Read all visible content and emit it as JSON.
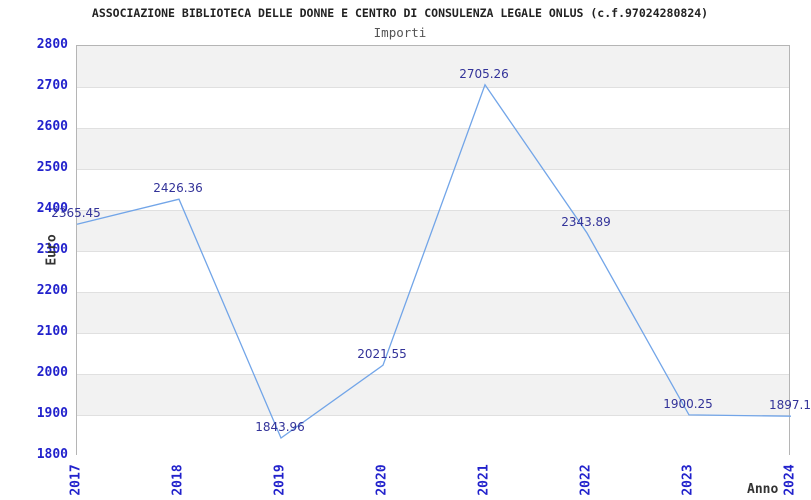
{
  "title": "ASSOCIAZIONE BIBLIOTECA DELLE DONNE E CENTRO DI CONSULENZA LEGALE ONLUS (c.f.97024280824)",
  "subtitle": "Importi",
  "chart_data": {
    "type": "line",
    "title": "Importi",
    "x": [
      2017,
      2018,
      2019,
      2020,
      2021,
      2022,
      2023,
      2024
    ],
    "values": [
      2365.45,
      2426.36,
      1843.96,
      2021.55,
      2705.26,
      2343.89,
      1900.25,
      1897.1
    ],
    "point_labels": [
      "2365.45",
      "2426.36",
      "1843.96",
      "2021.55",
      "2705.26",
      "2343.89",
      "1900.25",
      "1897.1"
    ],
    "xticks": [
      "2017",
      "2018",
      "2019",
      "2020",
      "2021",
      "2022",
      "2023",
      "2024"
    ],
    "yticks": [
      2800,
      2700,
      2600,
      2500,
      2400,
      2300,
      2200,
      2100,
      2000,
      1900,
      1800
    ],
    "ylim": [
      1800,
      2800
    ],
    "xlabel": "Anno",
    "ylabel": "Euro",
    "grid": "horizontal-alternating-bands",
    "legend": "none"
  },
  "colors": {
    "tick_label": "#2222cc",
    "point_label": "#333399",
    "line": "#72a5e8",
    "band_gray": "#f2f2f2",
    "band_white": "#ffffff",
    "gridline": "#e0e0e0",
    "plot_border": "#b5b5b5",
    "title": "#222222",
    "subtitle": "#555555",
    "axis_label": "#333333"
  }
}
